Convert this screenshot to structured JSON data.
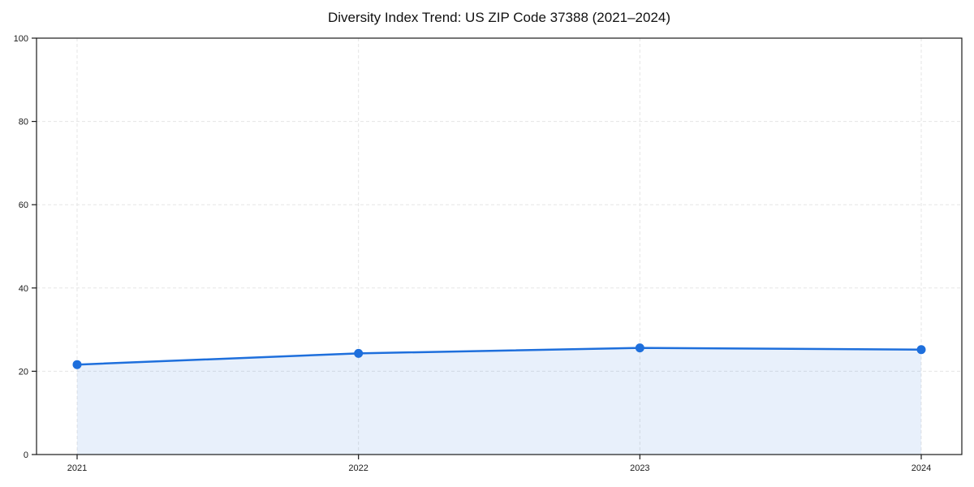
{
  "page": {
    "background": "#ffffff"
  },
  "chart_data": {
    "type": "area",
    "title": "Diversity Index Trend: US ZIP Code 37388 (2021–2024)",
    "categories": [
      "2021",
      "2022",
      "2023",
      "2024"
    ],
    "values": [
      21.6,
      24.3,
      25.6,
      25.2
    ],
    "xlabel": "",
    "ylabel": "",
    "ylim": [
      0,
      100
    ],
    "yticks": [
      0,
      20,
      40,
      60,
      80,
      100
    ],
    "grid": true,
    "grid_style": "dashed",
    "legend": "none",
    "marker": "circle",
    "colors": {
      "line": "#1e6fdc",
      "marker": "#1e6fdc",
      "fill": "rgba(30,111,220,0.10)",
      "grid": "#e5e5e5",
      "axis": "#1a1a1a",
      "tick_text": "#1a1a1a",
      "title": "#111111",
      "background": "#ffffff"
    }
  }
}
